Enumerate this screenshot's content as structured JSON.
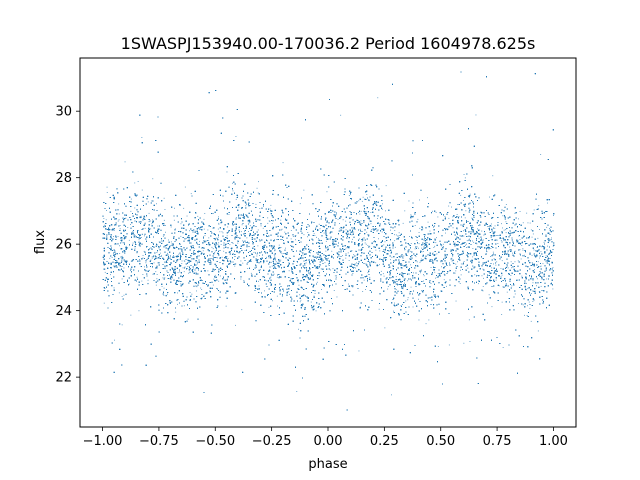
{
  "chart_data": {
    "type": "scatter",
    "title": "1SWASPJ153940.00-170036.2 Period 1604978.625s",
    "xlabel": "phase",
    "ylabel": "flux",
    "xlim": [
      -1.1,
      1.1
    ],
    "ylim": [
      20.5,
      31.6
    ],
    "xticks": [
      -1.0,
      -0.75,
      -0.5,
      -0.25,
      0.0,
      0.25,
      0.5,
      0.75,
      1.0
    ],
    "xtick_labels": [
      "−1.00",
      "−0.75",
      "−0.50",
      "−0.25",
      "0.00",
      "0.25",
      "0.50",
      "0.75",
      "1.00"
    ],
    "yticks": [
      22,
      24,
      26,
      28,
      30
    ],
    "ytick_labels": [
      "22",
      "24",
      "26",
      "28",
      "30"
    ],
    "grid": false,
    "marker_color": "#1f77b4",
    "series": [
      {
        "x_range": [
          -1.0,
          1.0
        ],
        "y_center": 25.8,
        "y_core_range": [
          24.0,
          27.5
        ],
        "y_full_range": [
          21.0,
          31.2
        ],
        "approx_points": 30000
      }
    ]
  }
}
